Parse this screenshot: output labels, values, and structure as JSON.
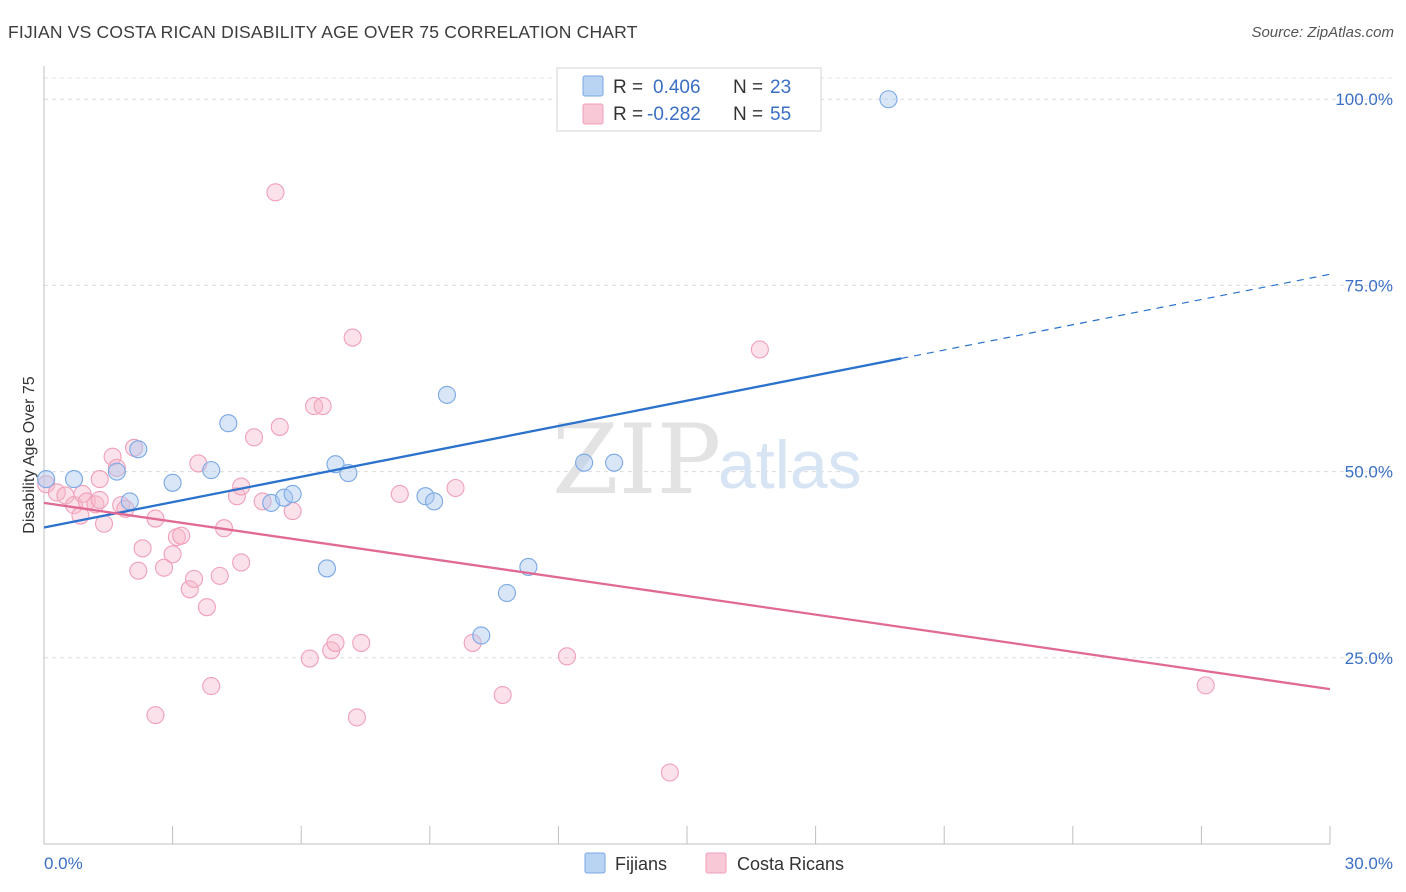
{
  "header": {
    "title": "FIJIAN VS COSTA RICAN DISABILITY AGE OVER 75 CORRELATION CHART",
    "source": "Source: ZipAtlas.com"
  },
  "watermark": {
    "zip": "ZIP",
    "atlas": "atlas"
  },
  "legend_top": {
    "rows": [
      {
        "r_label": "R =",
        "r_value": "0.406",
        "n_label": "N =",
        "n_value": "23",
        "color": "#a8c8f0"
      },
      {
        "r_label": "R =",
        "r_value": "-0.282",
        "n_label": "N =",
        "n_value": "55",
        "color": "#f5b8cb"
      }
    ]
  },
  "legend_bottom": {
    "items": [
      {
        "label": "Fijians",
        "color": "#a8c8f0"
      },
      {
        "label": "Costa Ricans",
        "color": "#f5b8cb"
      }
    ]
  },
  "chart_data": {
    "type": "scatter",
    "title": "FIJIAN VS COSTA RICAN DISABILITY AGE OVER 75 CORRELATION CHART",
    "xlabel": "",
    "ylabel": "Disability Age Over 75",
    "xlim": [
      0,
      30
    ],
    "ylim": [
      0,
      105
    ],
    "x_tick_labels": [
      "0.0%",
      "30.0%"
    ],
    "y_ticks": [
      25,
      50,
      75,
      100
    ],
    "y_tick_labels": [
      "25.0%",
      "50.0%",
      "75.0%",
      "100.0%"
    ],
    "grid": true,
    "legend_position": "top-center",
    "series": [
      {
        "name": "Fijians",
        "color": "#7aa8e6",
        "line_color": "#2a72cc",
        "r": 0.406,
        "n": 23,
        "trend": {
          "x0": 0,
          "y0": 42.5,
          "x1": 20,
          "y1": 65.2,
          "dash_to_x": 30,
          "dash_to_y": 76.5
        },
        "points": [
          [
            0.05,
            49.0
          ],
          [
            0.7,
            49.0
          ],
          [
            1.7,
            50.0
          ],
          [
            2.2,
            53.0
          ],
          [
            2.0,
            46.0
          ],
          [
            3.0,
            48.5
          ],
          [
            4.3,
            56.5
          ],
          [
            3.9,
            50.2
          ],
          [
            5.3,
            45.8
          ],
          [
            5.6,
            46.5
          ],
          [
            5.8,
            47.0
          ],
          [
            6.6,
            37.0
          ],
          [
            6.8,
            51.0
          ],
          [
            7.1,
            49.8
          ],
          [
            8.9,
            46.7
          ],
          [
            9.4,
            60.3
          ],
          [
            9.1,
            46.0
          ],
          [
            10.2,
            28.0
          ],
          [
            10.8,
            33.7
          ],
          [
            11.3,
            37.2
          ],
          [
            12.6,
            51.2
          ],
          [
            13.3,
            51.2
          ],
          [
            19.7,
            100.0
          ]
        ]
      },
      {
        "name": "Costa Ricans",
        "color": "#f0a0b8",
        "line_color": "#e06a94",
        "r": -0.282,
        "n": 55,
        "trend": {
          "x0": 0,
          "y0": 45.8,
          "x1": 30,
          "y1": 20.8
        },
        "points": [
          [
            0.05,
            48.3
          ],
          [
            0.3,
            47.2
          ],
          [
            0.5,
            46.8
          ],
          [
            0.7,
            45.5
          ],
          [
            0.9,
            47.0
          ],
          [
            0.85,
            44.1
          ],
          [
            1.0,
            46.0
          ],
          [
            1.2,
            45.6
          ],
          [
            1.3,
            46.2
          ],
          [
            1.3,
            49.0
          ],
          [
            1.4,
            43.0
          ],
          [
            1.6,
            52.0
          ],
          [
            1.7,
            50.5
          ],
          [
            1.8,
            45.5
          ],
          [
            1.9,
            45.0
          ],
          [
            2.1,
            53.2
          ],
          [
            2.2,
            36.7
          ],
          [
            2.3,
            39.7
          ],
          [
            2.6,
            17.3
          ],
          [
            2.8,
            37.1
          ],
          [
            2.6,
            43.7
          ],
          [
            3.1,
            41.2
          ],
          [
            3.0,
            38.9
          ],
          [
            3.2,
            41.4
          ],
          [
            3.4,
            34.2
          ],
          [
            3.5,
            35.6
          ],
          [
            3.6,
            51.1
          ],
          [
            3.8,
            31.8
          ],
          [
            3.9,
            21.2
          ],
          [
            4.1,
            36.0
          ],
          [
            4.2,
            42.4
          ],
          [
            4.5,
            46.7
          ],
          [
            4.6,
            48.0
          ],
          [
            4.6,
            37.8
          ],
          [
            4.9,
            54.6
          ],
          [
            5.1,
            46.0
          ],
          [
            5.5,
            56.0
          ],
          [
            5.8,
            44.7
          ],
          [
            5.4,
            87.5
          ],
          [
            6.2,
            24.9
          ],
          [
            6.3,
            58.8
          ],
          [
            6.5,
            58.8
          ],
          [
            6.7,
            26.0
          ],
          [
            6.8,
            27.0
          ],
          [
            7.2,
            68.0
          ],
          [
            7.3,
            17.0
          ],
          [
            7.4,
            27.0
          ],
          [
            8.3,
            47.0
          ],
          [
            9.6,
            47.8
          ],
          [
            10.0,
            27.0
          ],
          [
            10.7,
            20.0
          ],
          [
            12.2,
            25.2
          ],
          [
            14.6,
            9.6
          ],
          [
            16.7,
            66.4
          ],
          [
            27.1,
            21.3
          ]
        ]
      }
    ]
  }
}
